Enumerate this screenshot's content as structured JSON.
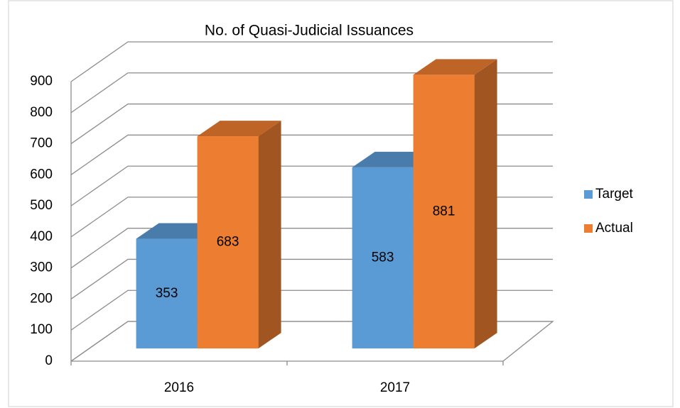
{
  "chart_data": {
    "type": "bar3d",
    "title": "No. of Quasi-Judicial Issuances",
    "categories": [
      "2016",
      "2017"
    ],
    "series": [
      {
        "name": "Target",
        "color": "#5b9bd5",
        "values": [
          353,
          583
        ]
      },
      {
        "name": "Actual",
        "color": "#ed7d31",
        "values": [
          683,
          881
        ]
      }
    ],
    "ylim": [
      0,
      900
    ],
    "yticks": [
      0,
      100,
      200,
      300,
      400,
      500,
      600,
      700,
      800,
      900
    ],
    "grid": true,
    "legend": "right"
  }
}
